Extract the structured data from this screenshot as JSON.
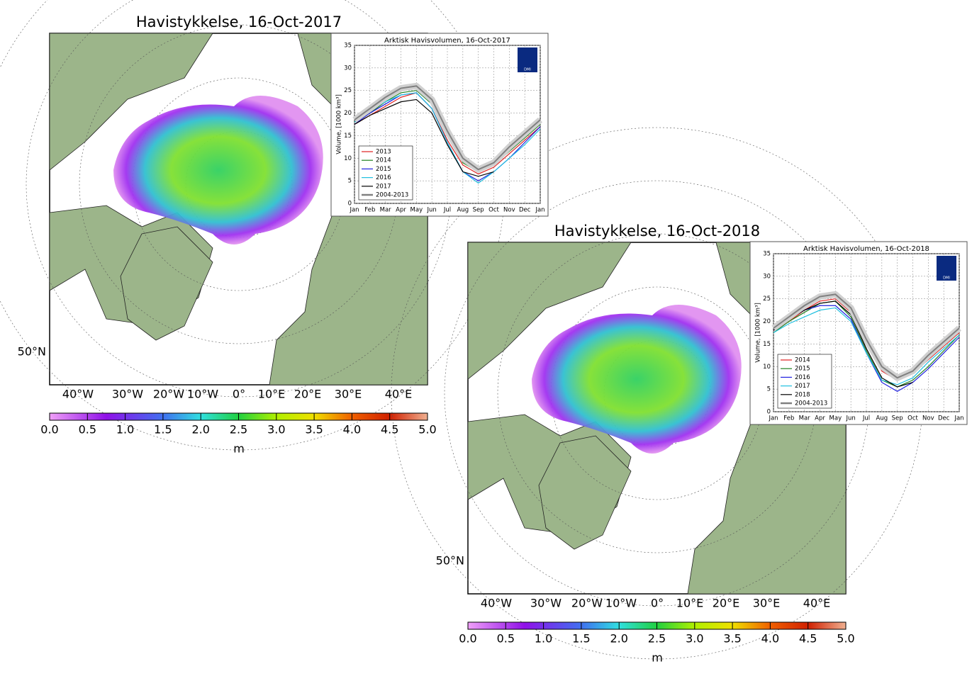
{
  "maps": [
    {
      "title": "Havistykkelse, 16-Oct-2017",
      "lon_labels": [
        "40°W",
        "30°W",
        "20°W",
        "10°W",
        "0°",
        "10°E",
        "20°E",
        "30°E",
        "40°E"
      ],
      "lat_label": "50°N",
      "colorbar": {
        "lim": [
          0,
          5
        ],
        "ticks": [
          {
            "value": 0,
            "label": "0.0"
          },
          0.5,
          {
            "value": 1,
            "label": "1.0"
          },
          1.5,
          {
            "value": 2,
            "label": "2.0"
          },
          2.5,
          {
            "value": 3,
            "label": "3.0"
          },
          3.5,
          {
            "value": 4,
            "label": "4.0"
          },
          4.5,
          {
            "value": 5,
            "label": "5.0"
          }
        ],
        "unit": "m"
      }
    },
    {
      "title": "Havistykkelse, 16-Oct-2018",
      "lon_labels": [
        "40°W",
        "30°W",
        "20°W",
        "10°W",
        "0°",
        "10°E",
        "20°E",
        "30°E",
        "40°E"
      ],
      "lat_label": "50°N",
      "colorbar": {
        "lim": [
          0,
          5
        ],
        "ticks": [
          {
            "value": 0,
            "label": "0.0"
          },
          0.5,
          {
            "value": 1,
            "label": "1.0"
          },
          1.5,
          {
            "value": 2,
            "label": "2.0"
          },
          2.5,
          {
            "value": 3,
            "label": "3.0"
          },
          3.5,
          {
            "value": 4,
            "label": "4.0"
          },
          4.5,
          {
            "value": 5,
            "label": "5.0"
          }
        ],
        "unit": "m"
      }
    }
  ],
  "chart_data": [
    {
      "type": "line",
      "title": "Arktisk Havisvolumen, 16-Oct-2017",
      "y_label": "Volume, [1000 km³]",
      "logo_text": "DMI",
      "categories": [
        "Jan",
        "Feb",
        "Mar",
        "Apr",
        "May",
        "Jun",
        "Jul",
        "Aug",
        "Sep",
        "Oct",
        "Nov",
        "Dec",
        "Jan"
      ],
      "ylim": [
        0,
        35
      ],
      "yticks": [
        0,
        5,
        10,
        15,
        20,
        25,
        30,
        35
      ],
      "grid": true,
      "series": [
        {
          "name": "2013",
          "color": "#e02020",
          "values": [
            17.5,
            19.5,
            21.5,
            23.5,
            24.5,
            21,
            14,
            8.5,
            6.5,
            8,
            11,
            14,
            17
          ]
        },
        {
          "name": "2014",
          "color": "#208020",
          "values": [
            18,
            20,
            22.5,
            24.5,
            25,
            22,
            15,
            9,
            7,
            8.5,
            11.5,
            14.5,
            17.5
          ]
        },
        {
          "name": "2015",
          "color": "#2020e0",
          "values": [
            17.5,
            20,
            22,
            24,
            24.5,
            21,
            13.5,
            7,
            5,
            7,
            10,
            13.5,
            17
          ]
        },
        {
          "name": "2016",
          "color": "#20c0e0",
          "values": [
            18,
            20.5,
            22.5,
            24,
            24.5,
            21,
            13.5,
            7,
            4.5,
            7,
            10,
            13,
            16.5
          ]
        },
        {
          "name": "2017",
          "color": "#000000",
          "values": [
            17.5,
            19.5,
            21,
            22.5,
            23,
            20,
            13,
            7,
            6,
            7,
            null,
            null,
            null
          ]
        },
        {
          "name": "2004-2013",
          "color": "#808080",
          "values": [
            18.5,
            21,
            23.5,
            25.5,
            26,
            23,
            16,
            10,
            7.5,
            9,
            12.5,
            15.5,
            18.5
          ]
        }
      ]
    },
    {
      "type": "line",
      "title": "Arktisk Havisvolumen, 16-Oct-2018",
      "y_label": "Volume, [1000 km³]",
      "logo_text": "DMI",
      "categories": [
        "Jan",
        "Feb",
        "Mar",
        "Apr",
        "May",
        "Jun",
        "Jul",
        "Aug",
        "Sep",
        "Oct",
        "Nov",
        "Dec",
        "Jan"
      ],
      "ylim": [
        0,
        35
      ],
      "yticks": [
        0,
        5,
        10,
        15,
        20,
        25,
        30,
        35
      ],
      "grid": true,
      "series": [
        {
          "name": "2014",
          "color": "#e02020",
          "values": [
            18,
            20,
            22.5,
            24.5,
            25,
            22,
            15,
            9,
            7,
            8.5,
            11.5,
            14.5,
            17.5
          ]
        },
        {
          "name": "2015",
          "color": "#208020",
          "values": [
            17.5,
            20,
            22,
            24,
            24.5,
            21,
            13.5,
            7,
            5.5,
            7,
            10,
            13.5,
            17
          ]
        },
        {
          "name": "2016",
          "color": "#2020e0",
          "values": [
            18,
            20.5,
            22.5,
            23.5,
            23.5,
            20.5,
            13,
            6.5,
            4.5,
            6.5,
            9.5,
            13,
            16.5
          ]
        },
        {
          "name": "2017",
          "color": "#20c0e0",
          "values": [
            17.5,
            19.5,
            21,
            22.5,
            23,
            20,
            13,
            7,
            6,
            7.5,
            11,
            14,
            17
          ]
        },
        {
          "name": "2018",
          "color": "#000000",
          "values": [
            18,
            20.5,
            22.5,
            24,
            24.5,
            21.5,
            14,
            7.5,
            5.5,
            6.5,
            null,
            null,
            null
          ]
        },
        {
          "name": "2004-2013",
          "color": "#808080",
          "values": [
            18.5,
            21,
            23.5,
            25.5,
            26,
            23,
            16,
            10,
            7.5,
            9,
            12.5,
            15.5,
            18.5
          ]
        }
      ]
    }
  ]
}
